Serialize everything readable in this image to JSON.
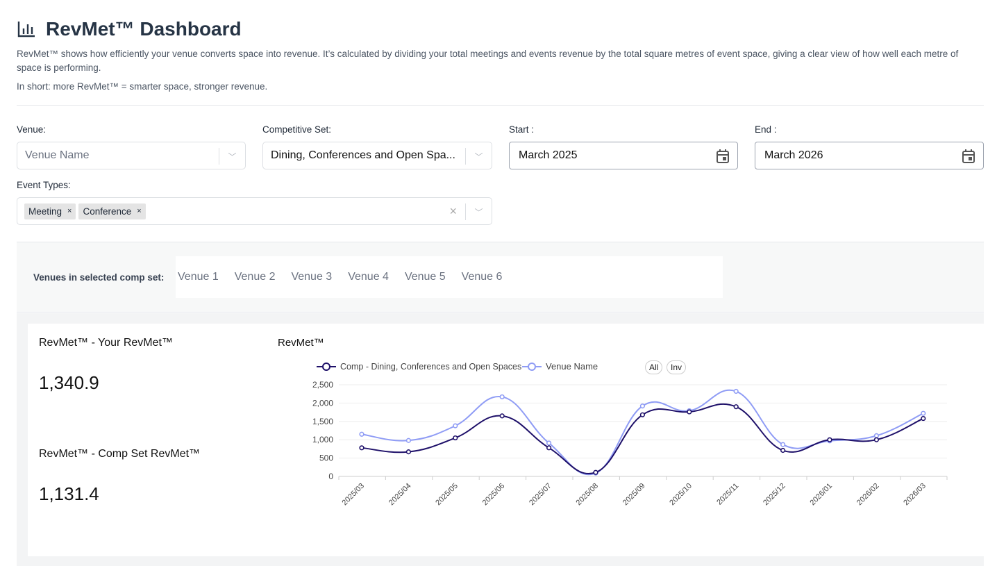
{
  "header": {
    "title": "RevMet™ Dashboard",
    "icon": "bar-chart-icon",
    "description": "RevMet™ shows how efficiently your venue converts space into revenue. It’s calculated by dividing your total meetings and events revenue by the total square metres of event space, giving a clear view of how well each metre of space is performing.",
    "short": "In short: more RevMet™ = smarter space, stronger revenue."
  },
  "filters": {
    "venue_label": "Venue:",
    "venue_placeholder": "Venue Name",
    "compset_label": "Competitive Set:",
    "compset_value": "Dining, Conferences and Open Spa...",
    "start_label": "Start :",
    "start_value": "March 2025",
    "end_label": "End :",
    "end_value": "March 2026",
    "event_types_label": "Event Types:",
    "event_types": [
      "Meeting",
      "Conference"
    ],
    "chip_remove": "×",
    "clear": "×"
  },
  "compset": {
    "label": "Venues in selected comp set:",
    "venues": [
      "Venue 1",
      "Venue 2",
      "Venue 3",
      "Venue 4",
      "Venue 5",
      "Venue 6"
    ]
  },
  "kpis": {
    "your_label": "RevMet™ - Your RevMet™",
    "your_value": "1,340.9",
    "comp_label": "RevMet™ - Comp Set RevMet™",
    "comp_value": "1,131.4"
  },
  "chart_controls": {
    "all": "All",
    "inv": "Inv"
  },
  "chart_data": {
    "type": "line",
    "title": "RevMet™",
    "ylim": [
      0,
      2500
    ],
    "yticks": [
      0,
      500,
      1000,
      1500,
      2000,
      2500
    ],
    "ytick_labels": [
      "0",
      "500",
      "1,000",
      "1,500",
      "2,000",
      "2,500"
    ],
    "categories": [
      "2025/03",
      "2025/04",
      "2025/05",
      "2025/06",
      "2025/07",
      "2025/08",
      "2025/09",
      "2025/10",
      "2025/11",
      "2025/12",
      "2026/01",
      "2026/02",
      "2026/03"
    ],
    "series": [
      {
        "name": "Comp - Dining, Conferences and Open Spaces",
        "color": "#1e1069",
        "values": [
          780,
          670,
          1050,
          1650,
          780,
          110,
          1680,
          1760,
          1900,
          710,
          1000,
          1000,
          1580
        ]
      },
      {
        "name": "Venue Name",
        "color": "#8f9cf5",
        "values": [
          1150,
          980,
          1380,
          2170,
          910,
          90,
          1920,
          1790,
          2320,
          870,
          970,
          1110,
          1720
        ]
      }
    ],
    "legend": "top-left",
    "grid": true
  }
}
